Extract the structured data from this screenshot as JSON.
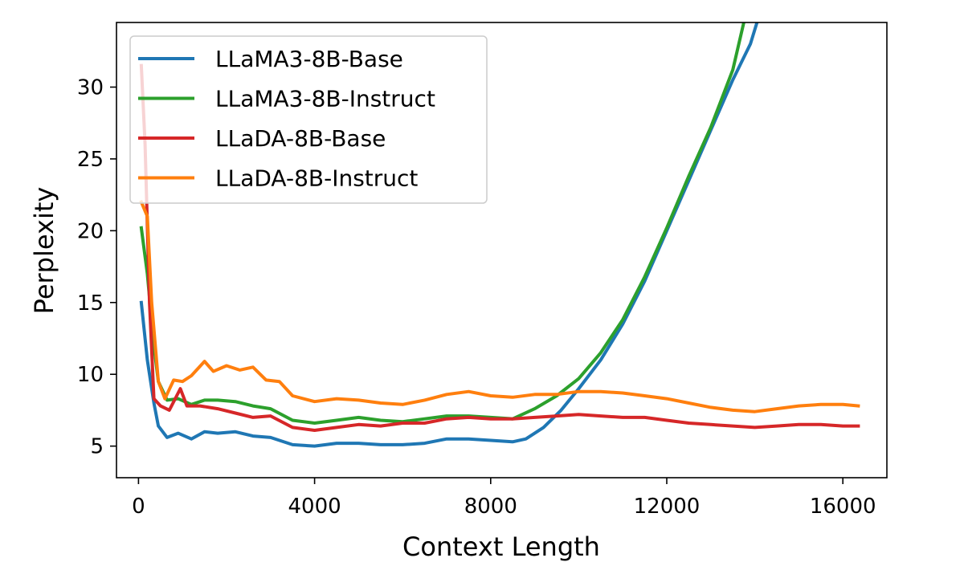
{
  "chart_data": {
    "type": "line",
    "xlabel": "Context Length",
    "ylabel": "Perplexity",
    "xlim": [
      -500,
      17000
    ],
    "ylim": [
      2.8,
      34.5
    ],
    "xticks": [
      0,
      4000,
      8000,
      12000,
      16000
    ],
    "xtick_labels": [
      "0",
      "4000",
      "8000",
      "12000",
      "16000"
    ],
    "yticks": [
      5,
      10,
      15,
      20,
      25,
      30
    ],
    "ytick_labels": [
      "5",
      "10",
      "15",
      "20",
      "25",
      "30"
    ],
    "grid": false,
    "legend_position": "upper-left",
    "series": [
      {
        "name": "LLaMA3-8B-Base",
        "color": "#1f77b4",
        "points": [
          [
            64,
            15.0
          ],
          [
            200,
            11.0
          ],
          [
            350,
            8.0
          ],
          [
            450,
            6.4
          ],
          [
            650,
            5.6
          ],
          [
            900,
            5.9
          ],
          [
            1200,
            5.5
          ],
          [
            1500,
            6.0
          ],
          [
            1800,
            5.9
          ],
          [
            2200,
            6.0
          ],
          [
            2600,
            5.7
          ],
          [
            3000,
            5.6
          ],
          [
            3500,
            5.1
          ],
          [
            4000,
            5.0
          ],
          [
            4500,
            5.2
          ],
          [
            5000,
            5.2
          ],
          [
            5500,
            5.1
          ],
          [
            6000,
            5.1
          ],
          [
            6500,
            5.2
          ],
          [
            7000,
            5.5
          ],
          [
            7500,
            5.5
          ],
          [
            8000,
            5.4
          ],
          [
            8500,
            5.3
          ],
          [
            8800,
            5.5
          ],
          [
            9200,
            6.3
          ],
          [
            9600,
            7.5
          ],
          [
            10000,
            9.0
          ],
          [
            10500,
            11.0
          ],
          [
            11000,
            13.5
          ],
          [
            11500,
            16.5
          ],
          [
            12000,
            20.0
          ],
          [
            12500,
            23.5
          ],
          [
            13000,
            27.0
          ],
          [
            13500,
            30.5
          ],
          [
            13900,
            33.0
          ],
          [
            14050,
            34.5
          ]
        ]
      },
      {
        "name": "LLaMA3-8B-Instruct",
        "color": "#2ca02c",
        "points": [
          [
            64,
            20.2
          ],
          [
            200,
            17.0
          ],
          [
            350,
            12.0
          ],
          [
            450,
            9.5
          ],
          [
            650,
            8.2
          ],
          [
            900,
            8.3
          ],
          [
            1200,
            7.9
          ],
          [
            1500,
            8.2
          ],
          [
            1800,
            8.2
          ],
          [
            2200,
            8.1
          ],
          [
            2600,
            7.8
          ],
          [
            3000,
            7.6
          ],
          [
            3500,
            6.8
          ],
          [
            4000,
            6.6
          ],
          [
            4500,
            6.8
          ],
          [
            5000,
            7.0
          ],
          [
            5500,
            6.8
          ],
          [
            6000,
            6.7
          ],
          [
            6500,
            6.9
          ],
          [
            7000,
            7.1
          ],
          [
            7500,
            7.1
          ],
          [
            8000,
            7.0
          ],
          [
            8500,
            6.9
          ],
          [
            9000,
            7.6
          ],
          [
            9500,
            8.5
          ],
          [
            10000,
            9.7
          ],
          [
            10500,
            11.5
          ],
          [
            11000,
            13.8
          ],
          [
            11500,
            16.8
          ],
          [
            12000,
            20.2
          ],
          [
            12500,
            23.8
          ],
          [
            13000,
            27.2
          ],
          [
            13500,
            31.2
          ],
          [
            13750,
            34.5
          ]
        ]
      },
      {
        "name": "LLaDA-8B-Base",
        "color": "#d62728",
        "points": [
          [
            64,
            31.5
          ],
          [
            150,
            26.0
          ],
          [
            250,
            15.0
          ],
          [
            350,
            8.3
          ],
          [
            500,
            7.8
          ],
          [
            700,
            7.5
          ],
          [
            950,
            9.0
          ],
          [
            1100,
            7.8
          ],
          [
            1400,
            7.8
          ],
          [
            1800,
            7.6
          ],
          [
            2200,
            7.3
          ],
          [
            2600,
            7.0
          ],
          [
            3000,
            7.1
          ],
          [
            3500,
            6.3
          ],
          [
            4000,
            6.1
          ],
          [
            4500,
            6.3
          ],
          [
            5000,
            6.5
          ],
          [
            5500,
            6.4
          ],
          [
            6000,
            6.6
          ],
          [
            6500,
            6.6
          ],
          [
            7000,
            6.9
          ],
          [
            7500,
            7.0
          ],
          [
            8000,
            6.9
          ],
          [
            8500,
            6.9
          ],
          [
            9000,
            7.0
          ],
          [
            9500,
            7.1
          ],
          [
            10000,
            7.2
          ],
          [
            10500,
            7.1
          ],
          [
            11000,
            7.0
          ],
          [
            11500,
            7.0
          ],
          [
            12000,
            6.8
          ],
          [
            12500,
            6.6
          ],
          [
            13000,
            6.5
          ],
          [
            13500,
            6.4
          ],
          [
            14000,
            6.3
          ],
          [
            14500,
            6.4
          ],
          [
            15000,
            6.5
          ],
          [
            15500,
            6.5
          ],
          [
            16000,
            6.4
          ],
          [
            16350,
            6.4
          ]
        ]
      },
      {
        "name": "LLaDA-8B-Instruct",
        "color": "#ff7f0e",
        "points": [
          [
            64,
            22.0
          ],
          [
            200,
            21.0
          ],
          [
            300,
            15.0
          ],
          [
            450,
            9.5
          ],
          [
            600,
            8.3
          ],
          [
            800,
            9.6
          ],
          [
            1000,
            9.5
          ],
          [
            1200,
            9.9
          ],
          [
            1500,
            10.9
          ],
          [
            1700,
            10.2
          ],
          [
            2000,
            10.6
          ],
          [
            2300,
            10.3
          ],
          [
            2600,
            10.5
          ],
          [
            2900,
            9.6
          ],
          [
            3200,
            9.5
          ],
          [
            3500,
            8.5
          ],
          [
            4000,
            8.1
          ],
          [
            4500,
            8.3
          ],
          [
            5000,
            8.2
          ],
          [
            5500,
            8.0
          ],
          [
            6000,
            7.9
          ],
          [
            6500,
            8.2
          ],
          [
            7000,
            8.6
          ],
          [
            7500,
            8.8
          ],
          [
            8000,
            8.5
          ],
          [
            8500,
            8.4
          ],
          [
            9000,
            8.6
          ],
          [
            9500,
            8.6
          ],
          [
            10000,
            8.8
          ],
          [
            10500,
            8.8
          ],
          [
            11000,
            8.7
          ],
          [
            11500,
            8.5
          ],
          [
            12000,
            8.3
          ],
          [
            12500,
            8.0
          ],
          [
            13000,
            7.7
          ],
          [
            13500,
            7.5
          ],
          [
            14000,
            7.4
          ],
          [
            14500,
            7.6
          ],
          [
            15000,
            7.8
          ],
          [
            15500,
            7.9
          ],
          [
            16000,
            7.9
          ],
          [
            16350,
            7.8
          ]
        ]
      }
    ]
  }
}
